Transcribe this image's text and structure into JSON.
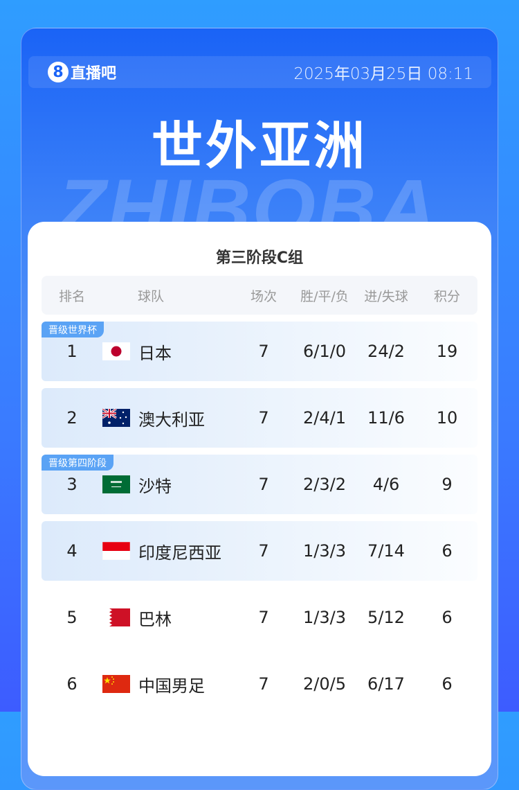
{
  "header": {
    "logo_text": "直播吧",
    "logo_mark": "8",
    "datetime": "2025年03月25日 08:11",
    "title": "世外亚洲",
    "watermark": "ZHIBOBA"
  },
  "table": {
    "subtitle": "第三阶段C组",
    "columns": [
      "排名",
      "球队",
      "场次",
      "胜/平/负",
      "进/失球",
      "积分"
    ],
    "rows": [
      {
        "rank": "1",
        "team": "日本",
        "flag": "japan-flag",
        "games": "7",
        "wdl": "6/1/0",
        "goals": "24/2",
        "points": "19",
        "badge": "晋级世界杯"
      },
      {
        "rank": "2",
        "team": "澳大利亚",
        "flag": "australia-flag",
        "games": "7",
        "wdl": "2/4/1",
        "goals": "11/6",
        "points": "10"
      },
      {
        "rank": "3",
        "team": "沙特",
        "flag": "saudi-flag",
        "games": "7",
        "wdl": "2/3/2",
        "goals": "4/6",
        "points": "9",
        "badge": "晋级第四阶段"
      },
      {
        "rank": "4",
        "team": "印度尼西亚",
        "flag": "indonesia-flag",
        "games": "7",
        "wdl": "1/3/3",
        "goals": "7/14",
        "points": "6"
      },
      {
        "rank": "5",
        "team": "巴林",
        "flag": "bahrain-flag",
        "games": "7",
        "wdl": "1/3/3",
        "goals": "5/12",
        "points": "6"
      },
      {
        "rank": "6",
        "team": "中国男足",
        "flag": "china-flag",
        "games": "7",
        "wdl": "2/0/5",
        "goals": "6/17",
        "points": "6"
      }
    ]
  },
  "colors": {
    "accent": "#1a63f6",
    "badge": "#5aa3f5"
  }
}
